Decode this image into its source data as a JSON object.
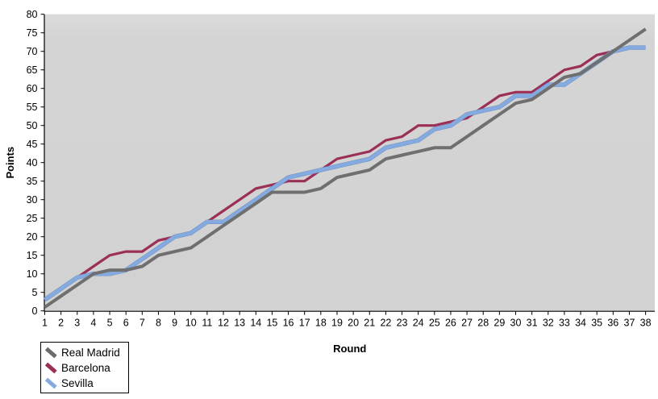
{
  "chart_data": {
    "type": "line",
    "title": "",
    "xlabel": "Round",
    "ylabel": "Points",
    "xlim": [
      1,
      38
    ],
    "ylim": [
      0,
      80
    ],
    "grid": false,
    "legend_position": "bottom-left",
    "page_background": "#ffffff",
    "plot_background": "#d4d4d4",
    "axis_color": "#000000",
    "x_ticks": [
      1,
      2,
      3,
      4,
      5,
      6,
      7,
      8,
      9,
      10,
      11,
      12,
      13,
      14,
      15,
      16,
      17,
      18,
      19,
      20,
      21,
      22,
      23,
      24,
      25,
      26,
      27,
      28,
      29,
      30,
      31,
      32,
      33,
      34,
      35,
      36,
      37,
      38
    ],
    "y_ticks": [
      0,
      5,
      10,
      15,
      20,
      25,
      30,
      35,
      40,
      45,
      50,
      55,
      60,
      65,
      70,
      75,
      80
    ],
    "rounds": [
      1,
      2,
      3,
      4,
      5,
      6,
      7,
      8,
      9,
      10,
      11,
      12,
      13,
      14,
      15,
      16,
      17,
      18,
      19,
      20,
      21,
      22,
      23,
      24,
      25,
      26,
      27,
      28,
      29,
      30,
      31,
      32,
      33,
      34,
      35,
      36,
      37,
      38
    ],
    "series": [
      {
        "name": "Real Madrid",
        "color": "#6f6f6f",
        "values": [
          1,
          4,
          7,
          10,
          11,
          11,
          12,
          15,
          16,
          17,
          20,
          23,
          26,
          29,
          32,
          32,
          32,
          33,
          36,
          37,
          38,
          41,
          42,
          43,
          44,
          44,
          47,
          50,
          53,
          56,
          57,
          60,
          63,
          64,
          67,
          70,
          73,
          76
        ]
      },
      {
        "name": "Barcelona",
        "color": "#9b2f55",
        "values": [
          3,
          6,
          9,
          12,
          15,
          16,
          16,
          19,
          20,
          21,
          24,
          27,
          30,
          33,
          34,
          35,
          35,
          38,
          41,
          42,
          43,
          46,
          47,
          50,
          50,
          51,
          52,
          55,
          58,
          59,
          59,
          62,
          65,
          66,
          69,
          70,
          73,
          76
        ]
      },
      {
        "name": "Sevilla",
        "color": "#84aadf",
        "values": [
          3,
          6,
          9,
          10,
          10,
          11,
          14,
          17,
          20,
          21,
          24,
          24,
          27,
          30,
          33,
          36,
          37,
          38,
          39,
          40,
          41,
          44,
          45,
          46,
          49,
          50,
          53,
          54,
          55,
          58,
          58,
          61,
          61,
          64,
          67,
          70,
          71,
          71
        ]
      }
    ]
  }
}
